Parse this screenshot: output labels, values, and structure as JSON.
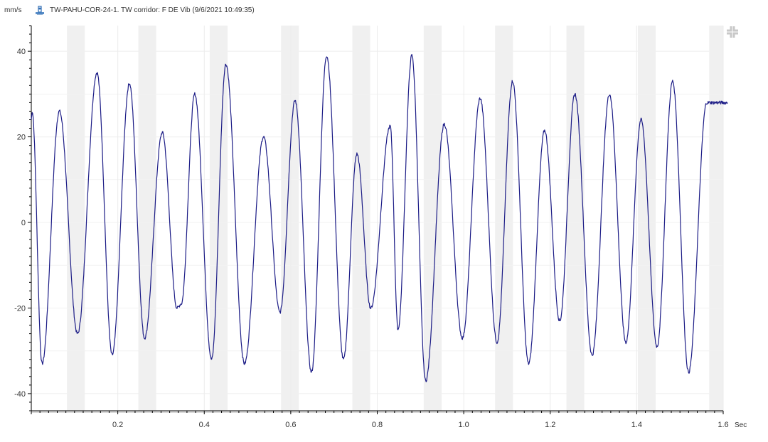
{
  "header": {
    "unit": "mm/s",
    "title": "TW-PAHU-COR-24-1.  TW corridor: F DE Vib (9/6/2021 10:49:35)",
    "sensor_icon": "sensor-icon",
    "collapse_icon": "collapse-icon"
  },
  "colors": {
    "trace": "#1c1c86",
    "band": "#f0f0f0",
    "axis": "#000000"
  },
  "chart_data": {
    "type": "line",
    "title": "TW-PAHU-COR-24-1.  TW corridor: F DE Vib (9/6/2021 10:49:35)",
    "ylabel": "mm/s",
    "xlabel": "Sec",
    "xlim": [
      0,
      1.6
    ],
    "ylim": [
      -44,
      46
    ],
    "x_ticks": [
      0.2,
      0.4,
      0.6,
      0.8,
      1.0,
      1.2,
      1.4,
      1.6
    ],
    "x_tick_labels": [
      "0.2",
      "0.4",
      "0.6",
      "0.8",
      "1.0",
      "1.2",
      "1.4",
      "1.6"
    ],
    "y_ticks": [
      -40,
      -20,
      0,
      20,
      40
    ],
    "y_tick_labels": [
      "-40",
      "-20",
      "0",
      "20",
      "40"
    ],
    "grid": true,
    "legend": "none",
    "series": [
      {
        "x": [
          0.0,
          0.002,
          0.025,
          0.065,
          0.107,
          0.152,
          0.187,
          0.227,
          0.262,
          0.303,
          0.337,
          0.347,
          0.378,
          0.417,
          0.45,
          0.493,
          0.537,
          0.575,
          0.61,
          0.648,
          0.683,
          0.722,
          0.753,
          0.785,
          0.83,
          0.848,
          0.88,
          0.912,
          0.955,
          0.997,
          1.038,
          1.077,
          1.113,
          1.15,
          1.187,
          1.222,
          1.257,
          1.297,
          1.337,
          1.375,
          1.41,
          1.447,
          1.483,
          1.52,
          1.562,
          1.59,
          1.61
        ],
        "y": [
          24,
          26,
          -33,
          26,
          -26,
          35,
          -31,
          32.5,
          -27,
          21,
          -20,
          -19,
          30,
          -32,
          37,
          -33,
          20,
          -21,
          28.5,
          -35,
          39,
          -32,
          16,
          -20,
          22.5,
          -25,
          39,
          -37,
          23,
          -27,
          29,
          -28,
          33,
          -33,
          21.5,
          -23,
          30,
          -31,
          30,
          -28,
          24,
          -29,
          33,
          -35,
          28,
          28,
          28
        ]
      }
    ]
  }
}
